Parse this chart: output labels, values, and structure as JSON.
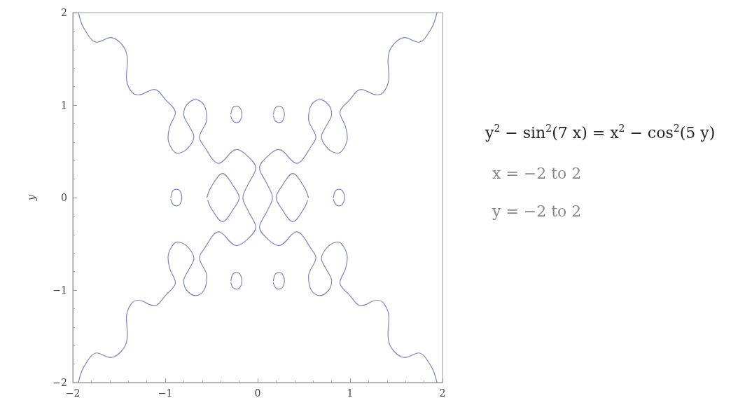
{
  "chart_data": {
    "type": "line",
    "ylabel": "y",
    "annotations": [
      "y$^{2}$ − sin$^{2}$(7 x) = x$^{2}$ − cos$^{2}$(5 y)",
      "x = −2 to 2",
      "y = −2 to 2"
    ],
    "xlim": [
      -2,
      2
    ],
    "ylim": [
      -2,
      2
    ],
    "xticks": [
      {
        "value": -2,
        "label": "−2"
      },
      {
        "value": -1,
        "label": "−1"
      },
      0,
      1,
      2
    ],
    "yticks": [
      {
        "value": -2,
        "label": "−2"
      },
      {
        "value": -1,
        "label": "−1"
      },
      0,
      1,
      2
    ],
    "series": [
      {
        "color": "#7f83c8",
        "x": [
          -1.94,
          -1.88,
          -1.74,
          -1.59,
          -1.45,
          -1.41,
          -1.42,
          -1.37,
          -1.29,
          -1.12,
          -0.99,
          -0.89,
          -0.95,
          -0.97,
          -0.87,
          -0.77,
          -0.69,
          -0.74,
          -0.8,
          -0.77,
          -0.67,
          -0.58,
          -0.55,
          -0.63,
          -0.59,
          -0.42,
          -0.23,
          -0.11,
          -0.02,
          -0.1,
          -0.16,
          -0.1,
          -0.02,
          -0.11,
          -0.23,
          -0.42,
          -0.59,
          -0.63,
          -0.55,
          -0.58,
          -0.67,
          -0.77,
          -0.8,
          -0.74,
          -0.69,
          -0.77,
          -0.87,
          -0.97,
          -0.95,
          -0.89,
          -0.99,
          -1.12,
          -1.29,
          -1.37,
          -1.42,
          -1.41,
          -1.45,
          -1.59,
          -1.74,
          -1.88,
          -1.94
        ],
        "values": [
          2.0,
          1.83,
          1.68,
          1.73,
          1.63,
          1.48,
          1.3,
          1.15,
          1.11,
          1.17,
          1.05,
          0.92,
          0.77,
          0.65,
          0.48,
          0.52,
          0.66,
          0.77,
          0.9,
          1.0,
          1.06,
          1.0,
          0.85,
          0.65,
          0.57,
          0.37,
          0.52,
          0.45,
          0.32,
          0.15,
          0,
          -0.15,
          -0.32,
          -0.45,
          -0.52,
          -0.37,
          -0.57,
          -0.65,
          -0.85,
          -1.0,
          -1.06,
          -1.0,
          -0.9,
          -0.77,
          -0.66,
          -0.52,
          -0.48,
          -0.65,
          -0.77,
          -0.92,
          -1.05,
          -1.17,
          -1.11,
          -1.15,
          -1.3,
          -1.48,
          -1.63,
          -1.73,
          -1.68,
          -1.83,
          -2.0
        ]
      },
      {
        "color": "#7f83c8",
        "x": [
          1.94,
          1.88,
          1.74,
          1.59,
          1.45,
          1.41,
          1.42,
          1.37,
          1.29,
          1.12,
          0.99,
          0.89,
          0.95,
          0.97,
          0.87,
          0.77,
          0.69,
          0.74,
          0.8,
          0.77,
          0.67,
          0.58,
          0.55,
          0.63,
          0.59,
          0.42,
          0.23,
          0.11,
          0.02,
          0.1,
          0.16,
          0.1,
          0.02,
          0.11,
          0.23,
          0.42,
          0.59,
          0.63,
          0.55,
          0.58,
          0.67,
          0.77,
          0.8,
          0.74,
          0.69,
          0.77,
          0.87,
          0.97,
          0.95,
          0.89,
          0.99,
          1.12,
          1.29,
          1.37,
          1.42,
          1.41,
          1.45,
          1.59,
          1.74,
          1.88,
          1.94
        ],
        "values": [
          2.0,
          1.83,
          1.68,
          1.73,
          1.63,
          1.48,
          1.3,
          1.15,
          1.11,
          1.17,
          1.05,
          0.92,
          0.77,
          0.65,
          0.48,
          0.52,
          0.66,
          0.77,
          0.9,
          1.0,
          1.06,
          1.0,
          0.85,
          0.65,
          0.57,
          0.37,
          0.52,
          0.45,
          0.32,
          0.15,
          0,
          -0.15,
          -0.32,
          -0.45,
          -0.52,
          -0.37,
          -0.57,
          -0.65,
          -0.85,
          -1.0,
          -1.06,
          -1.0,
          -0.9,
          -0.77,
          -0.66,
          -0.52,
          -0.48,
          -0.65,
          -0.77,
          -0.92,
          -1.05,
          -1.17,
          -1.11,
          -1.15,
          -1.3,
          -1.48,
          -1.63,
          -1.73,
          -1.68,
          -1.83,
          -2.0
        ]
      },
      {
        "color": "#7f83c8",
        "x": [
          -0.55,
          -0.5,
          -0.38,
          -0.26,
          -0.2,
          -0.26,
          -0.38,
          -0.5,
          -0.54
        ],
        "values": [
          0,
          0.12,
          0.26,
          0.12,
          0,
          -0.12,
          -0.26,
          -0.12,
          -0.03
        ]
      },
      {
        "color": "#7f83c8",
        "x": [
          0.55,
          0.5,
          0.38,
          0.26,
          0.2,
          0.26,
          0.38,
          0.5,
          0.54
        ],
        "values": [
          0,
          0.12,
          0.26,
          0.12,
          0,
          -0.12,
          -0.26,
          -0.12,
          -0.03
        ]
      },
      {
        "color": "#7f83c8",
        "x": [
          -0.29,
          -0.27,
          -0.23,
          -0.19,
          -0.17,
          -0.19,
          -0.23,
          -0.27,
          -0.29
        ],
        "values": [
          0.9,
          0.97,
          0.99,
          0.97,
          0.9,
          0.83,
          0.81,
          0.83,
          0.88
        ]
      },
      {
        "color": "#7f83c8",
        "x": [
          0.17,
          0.19,
          0.23,
          0.27,
          0.29,
          0.27,
          0.23,
          0.19,
          0.17
        ],
        "values": [
          0.9,
          0.97,
          0.99,
          0.97,
          0.9,
          0.83,
          0.81,
          0.83,
          0.88
        ]
      },
      {
        "color": "#7f83c8",
        "x": [
          -0.29,
          -0.27,
          -0.23,
          -0.19,
          -0.17,
          -0.19,
          -0.23,
          -0.27,
          -0.29
        ],
        "values": [
          -0.9,
          -0.83,
          -0.81,
          -0.83,
          -0.9,
          -0.97,
          -0.99,
          -0.97,
          -0.92
        ]
      },
      {
        "color": "#7f83c8",
        "x": [
          0.17,
          0.19,
          0.23,
          0.27,
          0.29,
          0.27,
          0.23,
          0.19,
          0.17
        ],
        "values": [
          -0.9,
          -0.83,
          -0.81,
          -0.83,
          -0.9,
          -0.97,
          -0.99,
          -0.97,
          -0.92
        ]
      },
      {
        "color": "#7f83c8",
        "x": [
          -0.94,
          -0.92,
          -0.88,
          -0.84,
          -0.82,
          -0.84,
          -0.88,
          -0.92,
          -0.94
        ],
        "values": [
          0,
          0.07,
          0.09,
          0.07,
          0,
          -0.07,
          -0.09,
          -0.07,
          -0.02
        ]
      },
      {
        "color": "#7f83c8",
        "x": [
          0.82,
          0.84,
          0.88,
          0.92,
          0.94,
          0.92,
          0.88,
          0.84,
          0.82
        ],
        "values": [
          0,
          0.07,
          0.09,
          0.07,
          0,
          -0.07,
          -0.09,
          -0.07,
          -0.02
        ]
      }
    ]
  }
}
